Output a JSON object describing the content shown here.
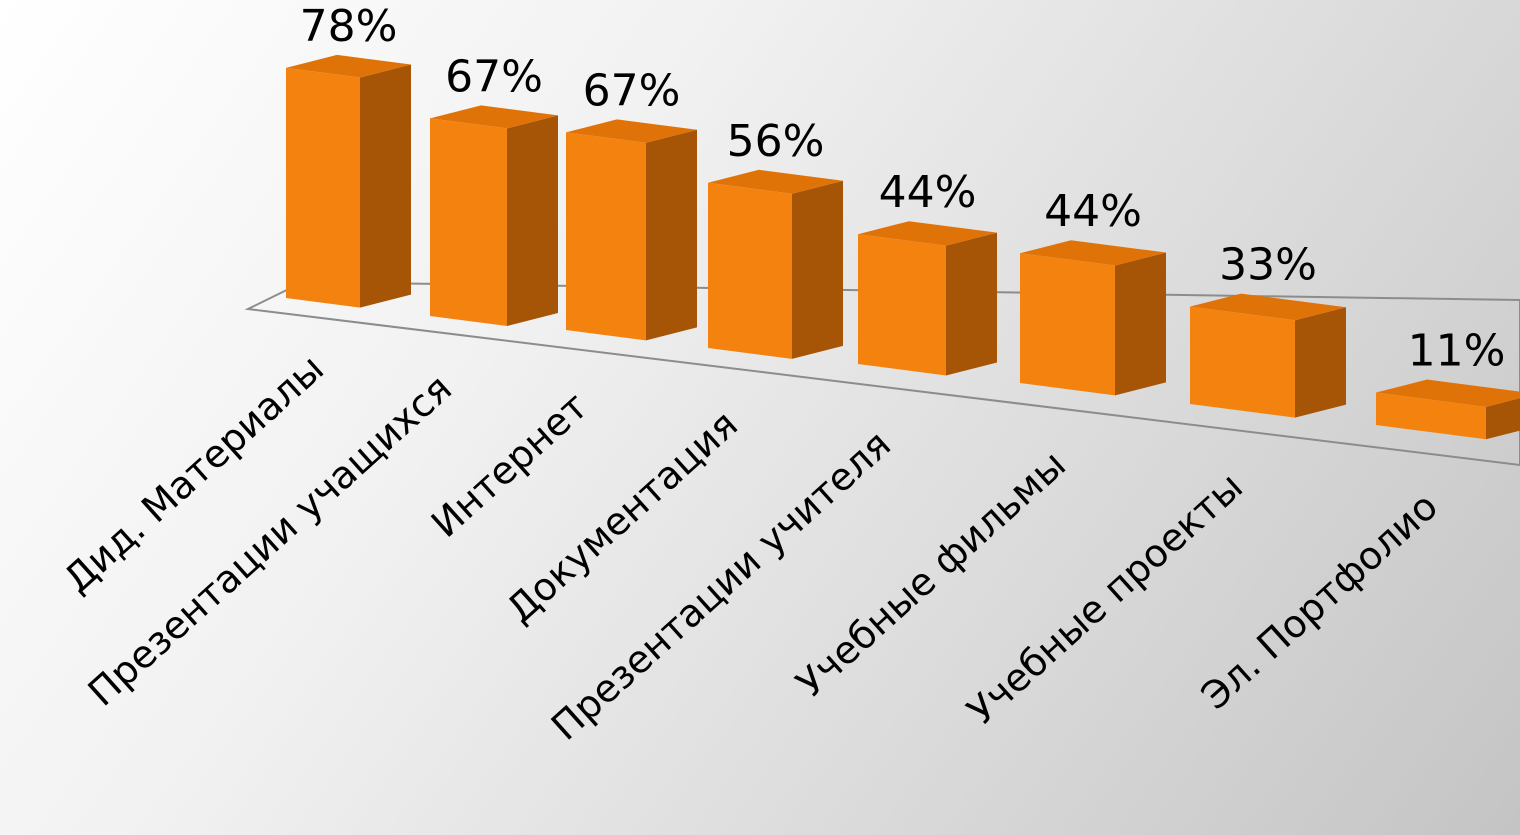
{
  "chart_data": {
    "type": "bar",
    "title": "",
    "xlabel": "",
    "ylabel": "",
    "categories": [
      "Дид. Материалы",
      "Презентации учащихся",
      "Интернет",
      "Документация",
      "Презентации учителя",
      "Учебные фильмы",
      "Учебные проекты",
      "Эл. Портфолио"
    ],
    "values": [
      78,
      67,
      67,
      56,
      44,
      44,
      33,
      11
    ],
    "value_suffix": "%",
    "ylim": [
      0,
      80
    ],
    "grid": false,
    "legend": "none",
    "style": "3d-column",
    "colors": {
      "bar_front": "#F3820F",
      "bar_side": "#A65506",
      "bar_top": "#E07308",
      "floor_line": "#8C8C8C"
    }
  }
}
